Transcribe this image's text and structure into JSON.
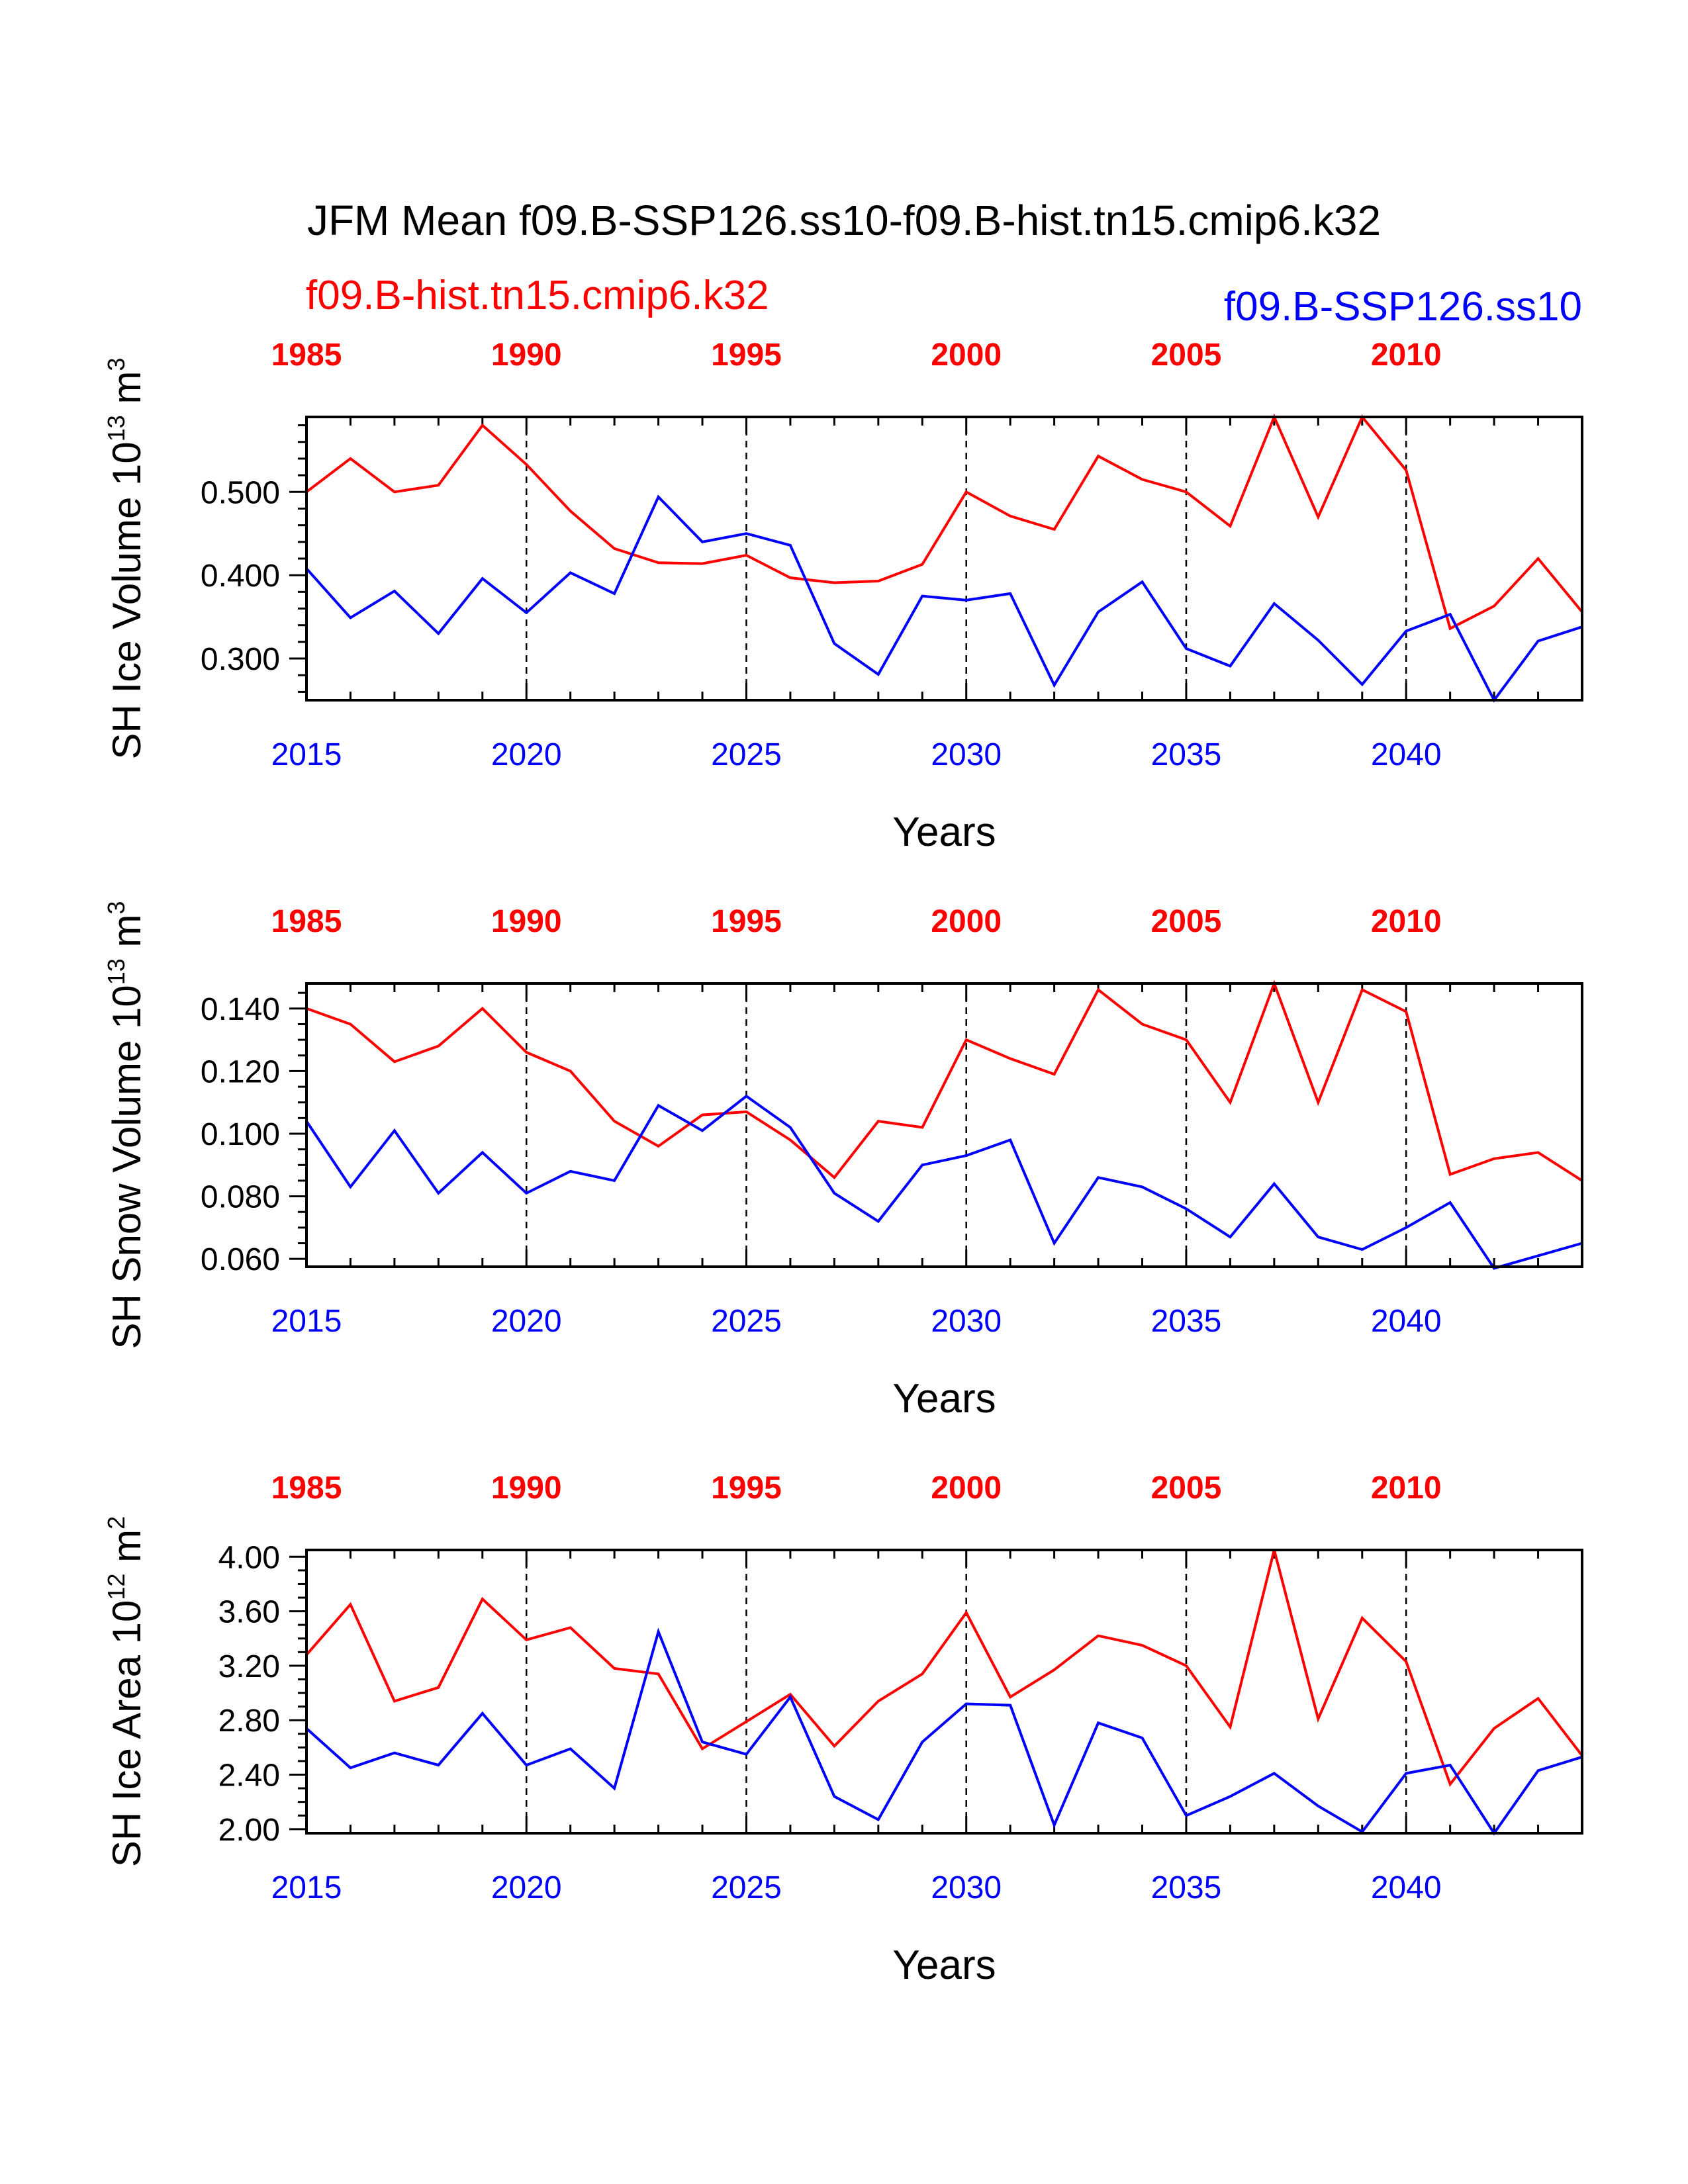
{
  "title": "JFM Mean f09.B-SSP126.ss10-f09.B-hist.tn15.cmip6.k32",
  "legend": {
    "hist": "f09.B-hist.tn15.cmip6.k32",
    "ssp": "f09.B-SSP126.ss10"
  },
  "colors": {
    "hist": "#ff0000",
    "ssp": "#0000ff",
    "axis": "#000000"
  },
  "chart_data": [
    {
      "type": "line",
      "ylabel": "SH Ice Volume 10",
      "ylabel_exp": "13",
      "ylabel_unit": " m",
      "ylabel_unit_exp": "3",
      "xlabel": "Years",
      "ylim": [
        0.25,
        0.59
      ],
      "yticks": [
        0.3,
        0.4,
        0.5
      ],
      "ytick_labels": [
        "0.300",
        "0.400",
        "0.500"
      ],
      "yminor": 0.02,
      "xlim": [
        2015,
        2044
      ],
      "xticks_bottom": [
        2015,
        2020,
        2025,
        2030,
        2035,
        2040
      ],
      "xticks_top": [
        1985,
        1990,
        1995,
        2000,
        2005,
        2010
      ],
      "x": [
        2015,
        2016,
        2017,
        2018,
        2019,
        2020,
        2021,
        2022,
        2023,
        2024,
        2025,
        2026,
        2027,
        2028,
        2029,
        2030,
        2031,
        2032,
        2033,
        2034,
        2035,
        2036,
        2037,
        2038,
        2039,
        2040,
        2041,
        2042,
        2043,
        2044
      ],
      "series": [
        {
          "name": "f09.B-hist.tn15.cmip6.k32",
          "color": "#ff0000",
          "values": [
            0.5,
            0.54,
            0.5,
            0.508,
            0.58,
            0.533,
            0.477,
            0.432,
            0.415,
            0.414,
            0.424,
            0.397,
            0.391,
            0.393,
            0.413,
            0.5,
            0.471,
            0.455,
            0.543,
            0.515,
            0.5,
            0.459,
            0.59,
            0.47,
            0.59,
            0.526,
            0.336,
            0.363,
            0.42,
            0.356
          ]
        },
        {
          "name": "f09.B-SSP126.ss10",
          "color": "#0000ff",
          "values": [
            0.408,
            0.349,
            0.381,
            0.33,
            0.396,
            0.355,
            0.403,
            0.378,
            0.494,
            0.44,
            0.45,
            0.436,
            0.318,
            0.281,
            0.375,
            0.37,
            0.378,
            0.268,
            0.356,
            0.392,
            0.312,
            0.291,
            0.366,
            0.322,
            0.269,
            0.333,
            0.353,
            0.25,
            0.321,
            0.338
          ]
        }
      ]
    },
    {
      "type": "line",
      "ylabel": "SH Snow Volume 10",
      "ylabel_exp": "13",
      "ylabel_unit": " m",
      "ylabel_unit_exp": "3",
      "xlabel": "Years",
      "ylim": [
        0.0575,
        0.148
      ],
      "yticks": [
        0.06,
        0.08,
        0.1,
        0.12,
        0.14
      ],
      "ytick_labels": [
        "0.060",
        "0.080",
        "0.100",
        "0.120",
        "0.140"
      ],
      "yminor": 0.005,
      "xlim": [
        2015,
        2044
      ],
      "xticks_bottom": [
        2015,
        2020,
        2025,
        2030,
        2035,
        2040
      ],
      "xticks_top": [
        1985,
        1990,
        1995,
        2000,
        2005,
        2010
      ],
      "x": [
        2015,
        2016,
        2017,
        2018,
        2019,
        2020,
        2021,
        2022,
        2023,
        2024,
        2025,
        2026,
        2027,
        2028,
        2029,
        2030,
        2031,
        2032,
        2033,
        2034,
        2035,
        2036,
        2037,
        2038,
        2039,
        2040,
        2041,
        2042,
        2043,
        2044
      ],
      "series": [
        {
          "name": "f09.B-hist.tn15.cmip6.k32",
          "color": "#ff0000",
          "values": [
            0.14,
            0.135,
            0.123,
            0.128,
            0.14,
            0.126,
            0.12,
            0.104,
            0.096,
            0.106,
            0.107,
            0.098,
            0.086,
            0.104,
            0.102,
            0.13,
            0.124,
            0.119,
            0.146,
            0.135,
            0.13,
            0.11,
            0.148,
            0.11,
            0.146,
            0.139,
            0.087,
            0.092,
            0.094,
            0.085
          ]
        },
        {
          "name": "f09.B-SSP126.ss10",
          "color": "#0000ff",
          "values": [
            0.104,
            0.083,
            0.101,
            0.081,
            0.094,
            0.081,
            0.088,
            0.085,
            0.109,
            0.101,
            0.112,
            0.102,
            0.081,
            0.072,
            0.09,
            0.093,
            0.098,
            0.065,
            0.086,
            0.083,
            0.076,
            0.067,
            0.084,
            0.067,
            0.063,
            0.07,
            0.078,
            0.057,
            0.061,
            0.065
          ]
        }
      ]
    },
    {
      "type": "line",
      "ylabel": "SH Ice Area 10",
      "ylabel_exp": "12",
      "ylabel_unit": " m",
      "ylabel_unit_exp": "2",
      "xlabel": "Years",
      "ylim": [
        1.97,
        4.05
      ],
      "yticks": [
        2.0,
        2.4,
        2.8,
        3.2,
        3.6,
        4.0
      ],
      "ytick_labels": [
        "2.00",
        "2.40",
        "2.80",
        "3.20",
        "3.60",
        "4.00"
      ],
      "yminor": 0.1,
      "xlim": [
        2015,
        2044
      ],
      "xticks_bottom": [
        2015,
        2020,
        2025,
        2030,
        2035,
        2040
      ],
      "xticks_top": [
        1985,
        1990,
        1995,
        2000,
        2005,
        2010
      ],
      "x": [
        2015,
        2016,
        2017,
        2018,
        2019,
        2020,
        2021,
        2022,
        2023,
        2024,
        2025,
        2026,
        2027,
        2028,
        2029,
        2030,
        2031,
        2032,
        2033,
        2034,
        2035,
        2036,
        2037,
        2038,
        2039,
        2040,
        2041,
        2042,
        2043,
        2044
      ],
      "series": [
        {
          "name": "f09.B-hist.tn15.cmip6.k32",
          "color": "#ff0000",
          "values": [
            3.28,
            3.65,
            2.94,
            3.04,
            3.69,
            3.39,
            3.48,
            3.18,
            3.14,
            2.59,
            2.79,
            2.99,
            2.61,
            2.94,
            3.14,
            3.59,
            2.97,
            3.17,
            3.42,
            3.35,
            3.2,
            2.75,
            4.05,
            2.81,
            3.55,
            3.23,
            2.33,
            2.74,
            2.96,
            2.54
          ]
        },
        {
          "name": "f09.B-SSP126.ss10",
          "color": "#0000ff",
          "values": [
            2.74,
            2.45,
            2.56,
            2.47,
            2.85,
            2.47,
            2.59,
            2.3,
            3.45,
            2.64,
            2.55,
            2.97,
            2.24,
            2.07,
            2.64,
            2.92,
            2.91,
            2.03,
            2.78,
            2.67,
            2.1,
            2.24,
            2.41,
            2.17,
            1.98,
            2.41,
            2.47,
            1.97,
            2.43,
            2.53
          ]
        }
      ]
    }
  ]
}
